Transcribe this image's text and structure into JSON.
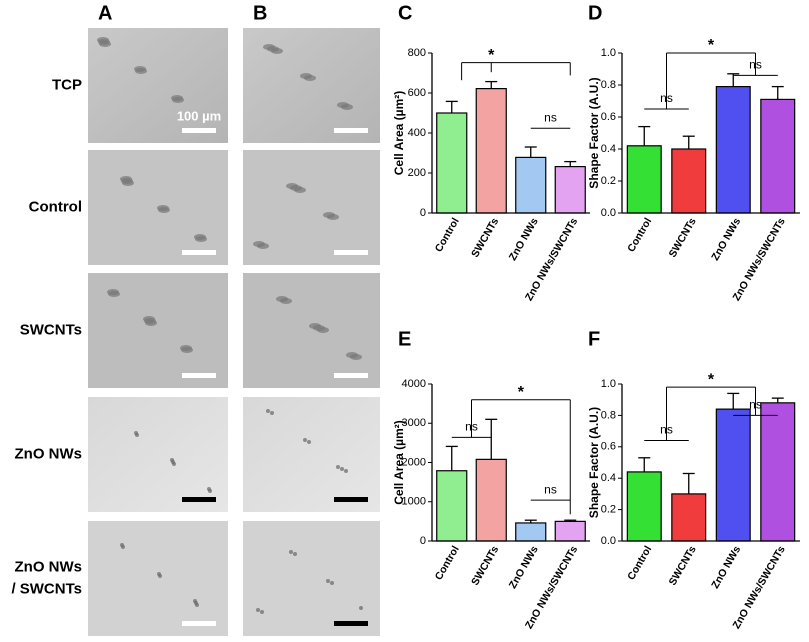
{
  "image_panels": {
    "column_labels": [
      "A",
      "B"
    ],
    "row_labels": [
      [
        "TCP"
      ],
      [
        "Control"
      ],
      [
        "SWCNTs"
      ],
      [
        "ZnO NWs"
      ],
      [
        "ZnO NWs",
        "/ SWCNTs"
      ]
    ],
    "scale_bar_label": "100 µm"
  },
  "chart_data": [
    {
      "type": "bar",
      "panel": "C",
      "y_label": "Cell Area (µm²)",
      "categories": [
        "Control",
        "SWCNTs",
        "ZnO NWs",
        "ZnO NWs/SWCNTs"
      ],
      "values": [
        500,
        622,
        278,
        232
      ],
      "errors": [
        58,
        35,
        52,
        25
      ],
      "colors": [
        "#90ee90",
        "#f4a3a3",
        "#a3c8f2",
        "#e3a3f0"
      ],
      "ylim": [
        0,
        800
      ],
      "yticks": [
        0,
        200,
        400,
        600,
        800
      ],
      "annotations": [
        "*",
        "ns"
      ]
    },
    {
      "type": "bar",
      "panel": "D",
      "y_label": "Shape Factor (A.U.)",
      "categories": [
        "Control",
        "SWCNTs",
        "ZnO NWs",
        "ZnO NWs/SWCNTs"
      ],
      "values": [
        0.42,
        0.4,
        0.79,
        0.71
      ],
      "errors": [
        0.12,
        0.08,
        0.08,
        0.08
      ],
      "colors": [
        "#33e033",
        "#f03c3c",
        "#5050f0",
        "#b050e0"
      ],
      "ylim": [
        0,
        1.0
      ],
      "yticks": [
        {
          "value": 0,
          "label": "0.0"
        },
        {
          "value": 0.2,
          "label": "0.2"
        },
        {
          "value": 0.4,
          "label": "0.4"
        },
        {
          "value": 0.6,
          "label": "0.6"
        },
        {
          "value": 0.8,
          "label": "0.8"
        },
        {
          "value": 1.0,
          "label": "1.0"
        }
      ],
      "annotations": [
        "ns",
        "*",
        "ns"
      ]
    },
    {
      "type": "bar",
      "panel": "E",
      "y_label": "Cell Area (µm²)",
      "categories": [
        "Control",
        "SWCNTs",
        "ZnO NWs",
        "ZnO NWs/SWCNTs"
      ],
      "values": [
        1790,
        2080,
        460,
        500
      ],
      "errors": [
        620,
        1020,
        70,
        30
      ],
      "colors": [
        "#90ee90",
        "#f4a3a3",
        "#a3c8f2",
        "#e3a3f0"
      ],
      "ylim": [
        0,
        4000
      ],
      "yticks": [
        0,
        1000,
        2000,
        3000,
        4000
      ],
      "annotations": [
        "ns",
        "*",
        "ns"
      ]
    },
    {
      "type": "bar",
      "panel": "F",
      "y_label": "Shape Factor (A.U.)",
      "categories": [
        "Control",
        "SWCNTs",
        "ZnO NWs",
        "ZnO NWs/SWCNTs"
      ],
      "values": [
        0.44,
        0.3,
        0.84,
        0.88
      ],
      "errors": [
        0.09,
        0.13,
        0.1,
        0.03
      ],
      "colors": [
        "#33e033",
        "#f03c3c",
        "#5050f0",
        "#b050e0"
      ],
      "ylim": [
        0,
        1.0
      ],
      "yticks": [
        {
          "value": 0,
          "label": "0.0"
        },
        {
          "value": 0.2,
          "label": "0.2"
        },
        {
          "value": 0.4,
          "label": "0.4"
        },
        {
          "value": 0.6,
          "label": "0.6"
        },
        {
          "value": 0.8,
          "label": "0.8"
        },
        {
          "value": 1.0,
          "label": "1.0"
        }
      ],
      "annotations": [
        "ns",
        "*",
        "ns"
      ]
    }
  ]
}
